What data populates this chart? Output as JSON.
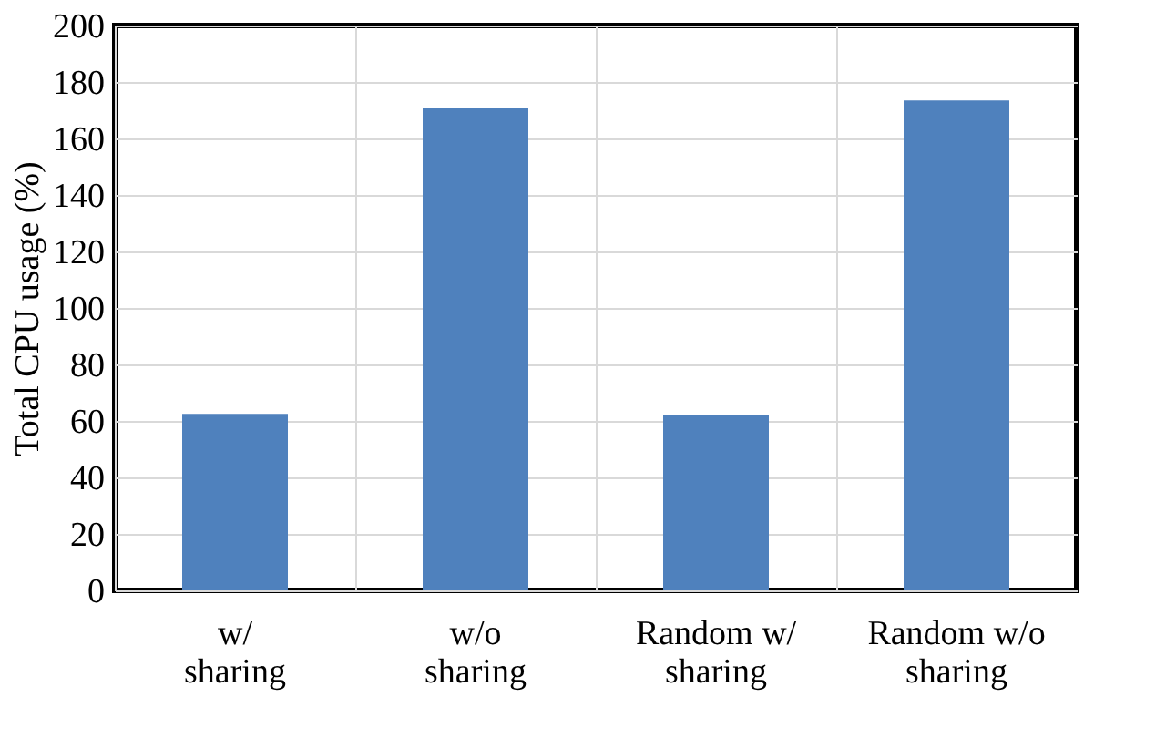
{
  "chart_data": {
    "type": "bar",
    "ylabel": "Total CPU usage (%)",
    "categories": [
      "w/ sharing",
      "w/o sharing",
      "Random w/ sharing",
      "Random w/o sharing"
    ],
    "values": [
      62.5,
      171,
      62,
      173.5
    ],
    "color": "#4f81bd",
    "ylim": [
      0,
      200
    ],
    "yticks": [
      0,
      20,
      40,
      60,
      80,
      100,
      120,
      140,
      160,
      180,
      200
    ],
    "grid": true
  }
}
